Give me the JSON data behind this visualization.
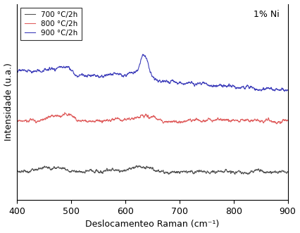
{
  "xlabel": "Deslocamenteo Raman (cm⁻¹)",
  "ylabel": "Intensidade (u.a.)",
  "annotation": "1% Ni",
  "xlim": [
    400,
    900
  ],
  "ylim": [
    -0.05,
    0.72
  ],
  "legend_labels": [
    "700 °C/2h",
    "800 °C/2h",
    "900 °C/2h"
  ],
  "colors": [
    "#555555",
    "#e06060",
    "#4040bb"
  ],
  "offsets": [
    0.06,
    0.26,
    0.46
  ],
  "background": "#ffffff",
  "xticks": [
    400,
    500,
    600,
    700,
    800,
    900
  ]
}
